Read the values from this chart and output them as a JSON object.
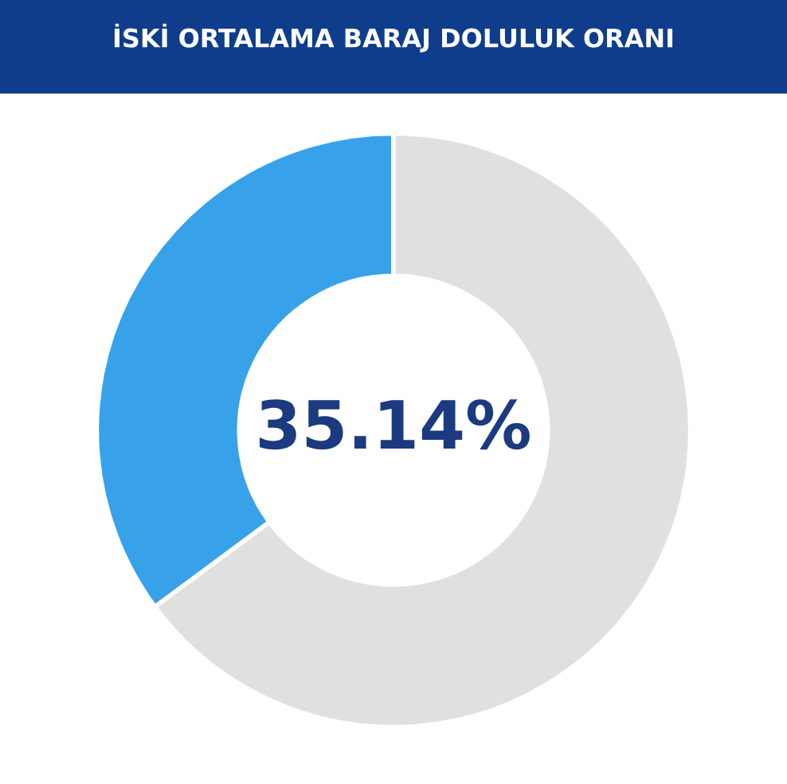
{
  "chart_data": {
    "type": "donut",
    "title": "İSKİ ORTALAMA BARAJ DOLULUK ORANI",
    "categories": [
      null,
      null
    ],
    "values": [
      35.14,
      64.86
    ],
    "colors": [
      "#37a2ea",
      "#e0e0e0"
    ],
    "annotations": [
      "35.14%"
    ],
    "legend": false
  }
}
